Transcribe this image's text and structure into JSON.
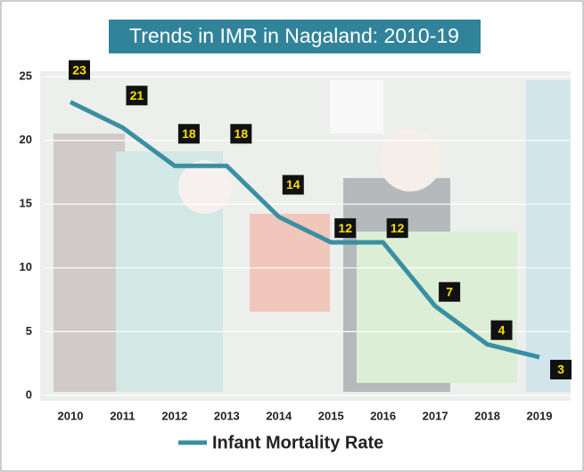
{
  "chart_data": {
    "type": "line",
    "title": "Trends in IMR in Nagaland: 2010-19",
    "categories": [
      "2010",
      "2011",
      "2012",
      "2013",
      "2014",
      "2015",
      "2016",
      "2017",
      "2018",
      "2019"
    ],
    "series": [
      {
        "name": "Infant Mortality Rate",
        "color": "#3a8fa3",
        "values": [
          23,
          21,
          18,
          18,
          14,
          12,
          12,
          7,
          4,
          3
        ]
      }
    ],
    "ylim": [
      0,
      25
    ],
    "yticks": [
      0,
      5,
      10,
      15,
      20,
      25
    ],
    "grid": true
  }
}
